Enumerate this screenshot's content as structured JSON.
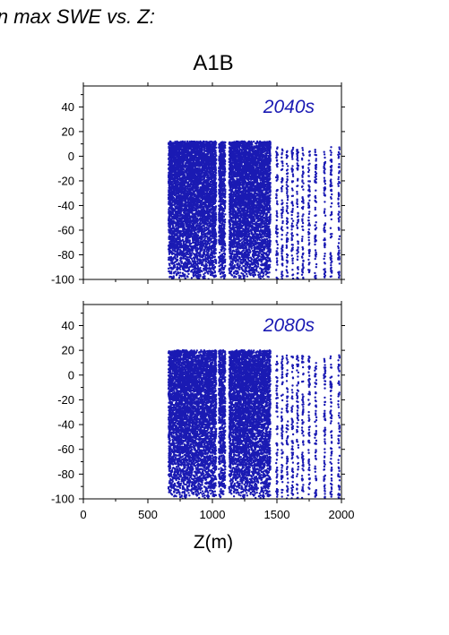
{
  "page": {
    "top_title": "in max SWE vs. Z:",
    "scenario_title": "A1B",
    "x_label": "Z(m)"
  },
  "colors": {
    "points": "#1a1ab3",
    "period_label": "#1a1ab3",
    "axes": "#000000"
  },
  "chart_data": [
    {
      "type": "scatter",
      "title": "",
      "panel_label": "2040s",
      "xlabel": "Z(m)",
      "ylabel": "",
      "xlim": [
        0,
        2000
      ],
      "ylim": [
        -100,
        57
      ],
      "x_ticks": [
        0,
        500,
        1000,
        1500,
        2000
      ],
      "y_ticks": [
        -100,
        -80,
        -60,
        -40,
        -20,
        0,
        20,
        40
      ],
      "x_tick_labels_shown": false,
      "grid": false,
      "point_cloud": {
        "z_min": 660,
        "z_max": 2000,
        "value_min": -100,
        "value_max": 12,
        "dense_bands": [
          [
            660,
            1030
          ],
          [
            1050,
            1100
          ],
          [
            1130,
            1450
          ]
        ],
        "sparse_columns": [
          1500,
          1540,
          1580,
          1620,
          1660,
          1700,
          1750,
          1800,
          1870,
          1920,
          1980
        ]
      }
    },
    {
      "type": "scatter",
      "title": "",
      "panel_label": "2080s",
      "xlabel": "Z(m)",
      "ylabel": "",
      "xlim": [
        0,
        2000
      ],
      "ylim": [
        -100,
        57
      ],
      "x_ticks": [
        0,
        500,
        1000,
        1500,
        2000
      ],
      "y_ticks": [
        -100,
        -80,
        -60,
        -40,
        -20,
        0,
        20,
        40
      ],
      "x_tick_labels_shown": true,
      "grid": false,
      "point_cloud": {
        "z_min": 660,
        "z_max": 2000,
        "value_min": -100,
        "value_max": 20,
        "dense_bands": [
          [
            660,
            1030
          ],
          [
            1050,
            1100
          ],
          [
            1130,
            1450
          ]
        ],
        "sparse_columns": [
          1500,
          1540,
          1580,
          1620,
          1660,
          1700,
          1750,
          1800,
          1870,
          1920,
          1980
        ]
      }
    }
  ]
}
